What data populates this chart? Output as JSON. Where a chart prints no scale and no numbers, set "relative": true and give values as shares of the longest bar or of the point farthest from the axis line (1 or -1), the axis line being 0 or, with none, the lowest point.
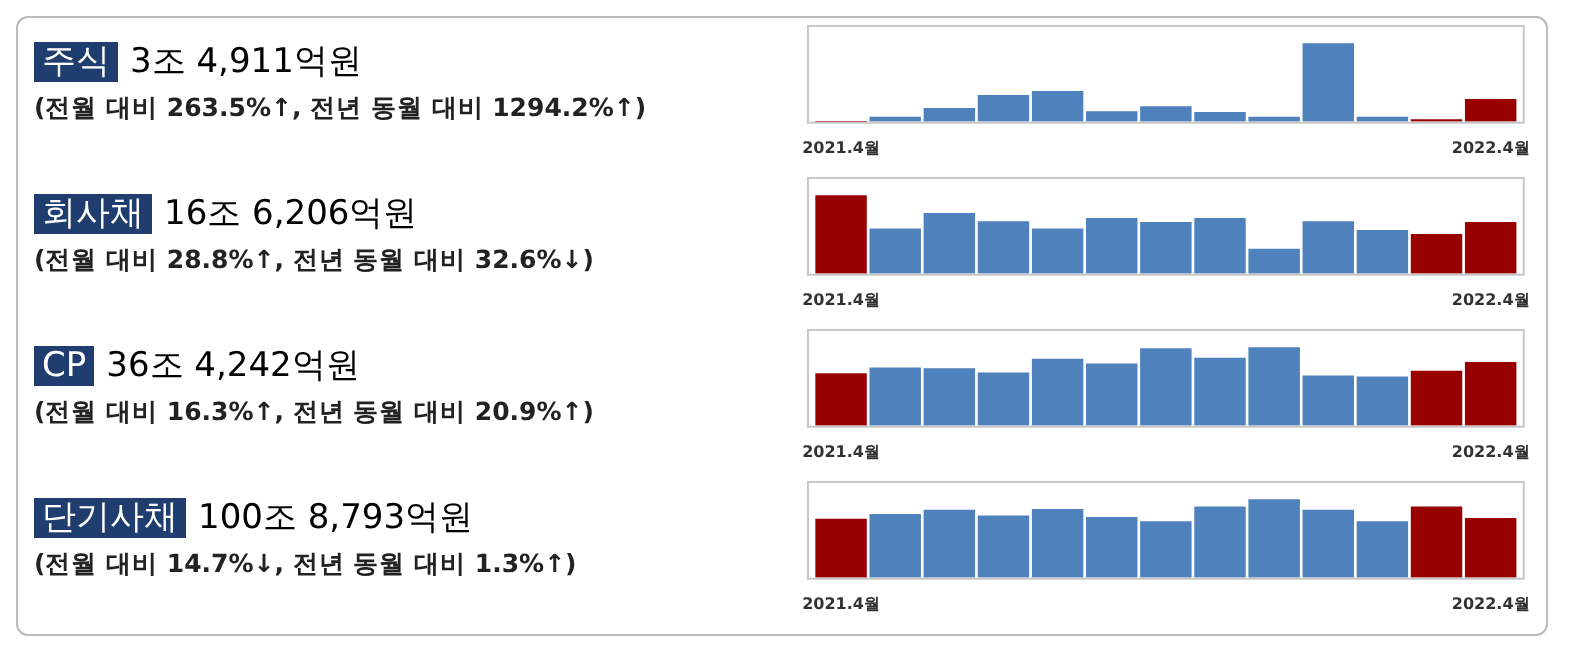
{
  "chart_data": [
    {
      "type": "bar",
      "annotations": [
        "주식",
        "3조 4,911억원",
        "(전월 대비 263.5%↑, 전년 동월 대비 1294.2%↑)"
      ],
      "relative": true,
      "grid": false,
      "legend": false,
      "categories": [
        "2021.4월",
        null,
        null,
        null,
        null,
        null,
        null,
        null,
        null,
        null,
        null,
        null,
        "2022.4월"
      ],
      "values": [
        0.02,
        0.09,
        0.2,
        0.36,
        0.41,
        0.16,
        0.22,
        0.15,
        0.09,
        1,
        0.09,
        0.06,
        0.31
      ],
      "colors": [
        "#990000",
        "#4f81bd",
        "#4f81bd",
        "#4f81bd",
        "#4f81bd",
        "#4f81bd",
        "#4f81bd",
        "#4f81bd",
        "#4f81bd",
        "#4f81bd",
        "#4f81bd",
        "#990000",
        "#990000"
      ]
    },
    {
      "type": "bar",
      "annotations": [
        "회사채",
        "16조 6,206억원",
        "(전월 대비 28.8%↑, 전년 동월 대비 32.6%↓)"
      ],
      "relative": true,
      "grid": false,
      "legend": false,
      "categories": [
        "2021.4월",
        null,
        null,
        null,
        null,
        null,
        null,
        null,
        null,
        null,
        null,
        null,
        "2022.4월"
      ],
      "values": [
        1,
        0.59,
        0.78,
        0.68,
        0.59,
        0.72,
        0.67,
        0.72,
        0.34,
        0.68,
        0.57,
        0.52,
        0.67
      ],
      "colors": [
        "#990000",
        "#4f81bd",
        "#4f81bd",
        "#4f81bd",
        "#4f81bd",
        "#4f81bd",
        "#4f81bd",
        "#4f81bd",
        "#4f81bd",
        "#4f81bd",
        "#4f81bd",
        "#990000",
        "#990000"
      ]
    },
    {
      "type": "bar",
      "annotations": [
        "CP",
        "36조 4,242억원",
        "(전월 대비 16.3%↑, 전년 동월 대비 20.9%↑)"
      ],
      "relative": true,
      "grid": false,
      "legend": false,
      "categories": [
        "2021.4월",
        null,
        null,
        null,
        null,
        null,
        null,
        null,
        null,
        null,
        null,
        null,
        "2022.4월"
      ],
      "values": [
        0.68,
        0.75,
        0.74,
        0.69,
        0.86,
        0.8,
        0.99,
        0.87,
        1,
        0.65,
        0.64,
        0.71,
        0.82
      ],
      "colors": [
        "#990000",
        "#4f81bd",
        "#4f81bd",
        "#4f81bd",
        "#4f81bd",
        "#4f81bd",
        "#4f81bd",
        "#4f81bd",
        "#4f81bd",
        "#4f81bd",
        "#4f81bd",
        "#990000",
        "#990000"
      ]
    },
    {
      "type": "bar",
      "annotations": [
        "단기사채",
        "100조 8,793억원",
        "(전월 대비 14.7%↓, 전년 동월 대비 1.3%↑)"
      ],
      "relative": true,
      "grid": false,
      "legend": false,
      "categories": [
        "2021.4월",
        null,
        null,
        null,
        null,
        null,
        null,
        null,
        null,
        null,
        null,
        null,
        "2022.4월"
      ],
      "values": [
        0.76,
        0.82,
        0.87,
        0.8,
        0.88,
        0.78,
        0.73,
        0.91,
        1,
        0.87,
        0.73,
        0.91,
        0.77
      ],
      "colors": [
        "#990000",
        "#4f81bd",
        "#4f81bd",
        "#4f81bd",
        "#4f81bd",
        "#4f81bd",
        "#4f81bd",
        "#4f81bd",
        "#4f81bd",
        "#4f81bd",
        "#4f81bd",
        "#990000",
        "#990000"
      ]
    }
  ]
}
